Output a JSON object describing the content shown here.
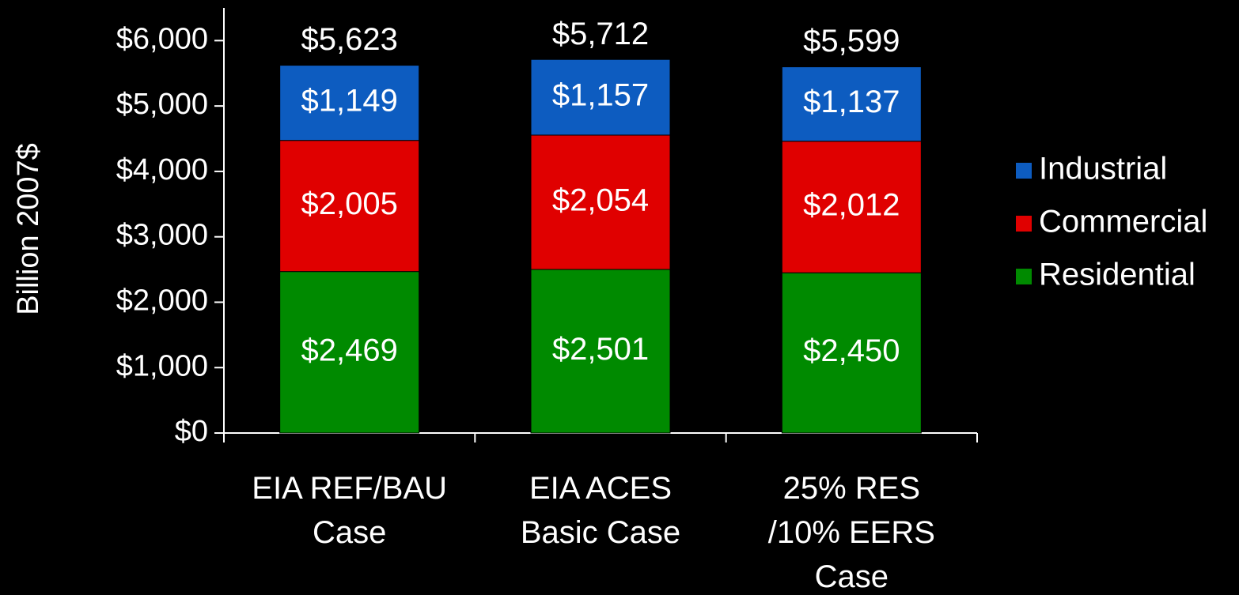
{
  "chart_data": {
    "type": "stacked_bar",
    "y_axis_label": "Billion 2007$",
    "categories": [
      "EIA REF/BAU\nCase",
      "EIA ACES\nBasic Case",
      "25% RES\n/10% EERS\nCase"
    ],
    "series": [
      {
        "name": "Residential",
        "color": "#008a00",
        "values": [
          2469,
          2501,
          2450
        ],
        "value_labels": [
          "$2,469",
          "$2,501",
          "$2,450"
        ]
      },
      {
        "name": "Commercial",
        "color": "#e00000",
        "values": [
          2005,
          2054,
          2012
        ],
        "value_labels": [
          "$2,005",
          "$2,054",
          "$2,012"
        ]
      },
      {
        "name": "Industrial",
        "color": "#0d5cc0",
        "values": [
          1149,
          1157,
          1137
        ],
        "value_labels": [
          "$1,149",
          "$1,157",
          "$1,137"
        ]
      }
    ],
    "totals": {
      "values": [
        5623,
        5712,
        5599
      ],
      "value_labels": [
        "$5,623",
        "$5,712",
        "$5,599"
      ]
    },
    "ylim": [
      0,
      6500
    ],
    "yticks": [
      {
        "value": 0,
        "label": "$0"
      },
      {
        "value": 1000,
        "label": "$1,000"
      },
      {
        "value": 2000,
        "label": "$2,000"
      },
      {
        "value": 3000,
        "label": "$3,000"
      },
      {
        "value": 4000,
        "label": "$4,000"
      },
      {
        "value": 5000,
        "label": "$5,000"
      },
      {
        "value": 6000,
        "label": "$6,000"
      }
    ],
    "legend": "right"
  }
}
